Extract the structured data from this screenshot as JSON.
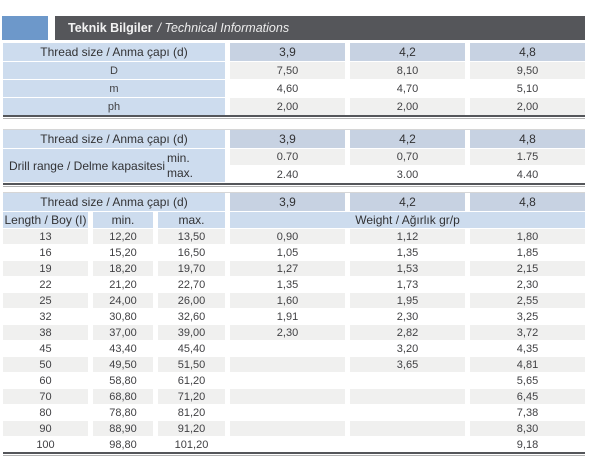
{
  "title_bar": {
    "title_tr": "Teknik Bilgiler",
    "title_en": "/ Technical Informations"
  },
  "colors": {
    "accent_blue": "#6d98ca",
    "bar_gray": "#55565a",
    "header_blue": "#cddcee",
    "value_header_blue": "#c7d2e2",
    "shaded_row": "#f0f0ef",
    "text": "#414144"
  },
  "table1": {
    "header_label": "Thread size / Anma çapı (d)",
    "sizes": [
      "3,9",
      "4,2",
      "4,8"
    ],
    "rows": [
      {
        "label": "D",
        "values": [
          "7,50",
          "8,10",
          "9,50"
        ]
      },
      {
        "label": "m",
        "values": [
          "4,60",
          "4,70",
          "5,10"
        ]
      },
      {
        "label": "ph",
        "values": [
          "2,00",
          "2,00",
          "2,00"
        ]
      }
    ]
  },
  "table2": {
    "header_label": "Thread size / Anma çapı (d)",
    "sizes": [
      "3,9",
      "4,2",
      "4,8"
    ],
    "group_label": "Drill range / Delme kapasitesi",
    "rows": [
      {
        "label": "min.",
        "values": [
          "0.70",
          "0,70",
          "1.75"
        ]
      },
      {
        "label": "max.",
        "values": [
          "2.40",
          "3.00",
          "4.40"
        ]
      }
    ]
  },
  "table3": {
    "header_label": "Thread size / Anma çapı (d)",
    "sizes": [
      "3,9",
      "4,2",
      "4,8"
    ],
    "length_label": "Length / Boy (I)",
    "min_label": "min.",
    "max_label": "max.",
    "weight_label": "Weight / Ağırlık gr/p",
    "rows": [
      {
        "length": "13",
        "min": "12,20",
        "max": "13,50",
        "weights": [
          "0,90",
          "1,12",
          "1,80"
        ]
      },
      {
        "length": "16",
        "min": "15,20",
        "max": "16,50",
        "weights": [
          "1,05",
          "1,35",
          "1,85"
        ]
      },
      {
        "length": "19",
        "min": "18,20",
        "max": "19,70",
        "weights": [
          "1,27",
          "1,53",
          "2,15"
        ]
      },
      {
        "length": "22",
        "min": "21,20",
        "max": "22,70",
        "weights": [
          "1,35",
          "1,73",
          "2,30"
        ]
      },
      {
        "length": "25",
        "min": "24,00",
        "max": "26,00",
        "weights": [
          "1,60",
          "1,95",
          "2,55"
        ]
      },
      {
        "length": "32",
        "min": "30,80",
        "max": "32,60",
        "weights": [
          "1,91",
          "2,30",
          "3,25"
        ]
      },
      {
        "length": "38",
        "min": "37,00",
        "max": "39,00",
        "weights": [
          "2,30",
          "2,82",
          "3,72"
        ]
      },
      {
        "length": "45",
        "min": "43,40",
        "max": "45,40",
        "weights": [
          "",
          "3,20",
          "4,35"
        ]
      },
      {
        "length": "50",
        "min": "49,50",
        "max": "51,50",
        "weights": [
          "",
          "3,65",
          "4,81"
        ]
      },
      {
        "length": "60",
        "min": "58,80",
        "max": "61,20",
        "weights": [
          "",
          "",
          "5,65"
        ]
      },
      {
        "length": "70",
        "min": "68,80",
        "max": "71,20",
        "weights": [
          "",
          "",
          "6,45"
        ]
      },
      {
        "length": "80",
        "min": "78,80",
        "max": "81,20",
        "weights": [
          "",
          "",
          "7,38"
        ]
      },
      {
        "length": "90",
        "min": "88,90",
        "max": "91,20",
        "weights": [
          "",
          "",
          "8,30"
        ]
      },
      {
        "length": "100",
        "min": "98,80",
        "max": "101,20",
        "weights": [
          "",
          "",
          "9,18"
        ]
      }
    ]
  }
}
